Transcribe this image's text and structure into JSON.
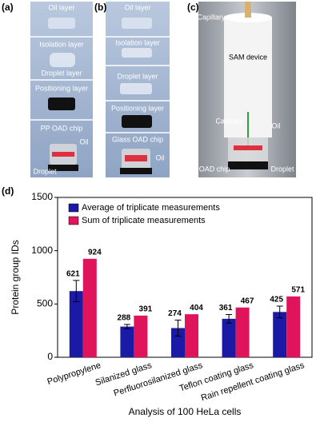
{
  "panels": [
    {
      "label": "(a)",
      "texts": [
        "Oil layer",
        "Isolation layer",
        "Droplet layer",
        "Positioning layer",
        "PP OAD chip",
        "Oil",
        "Droplet"
      ]
    },
    {
      "label": "(b)",
      "texts": [
        "Oil layer",
        "Isolation layer",
        "Droplet layer",
        "Positioning layer",
        "Glass OAD chip",
        "Oil"
      ]
    },
    {
      "label": "(c)",
      "texts": [
        "Capillary",
        "SAM device",
        "Capillary",
        "Oil",
        "OAD chip",
        "Droplet"
      ]
    }
  ],
  "chart_data": {
    "type": "bar",
    "panel_label": "(d)",
    "ylabel": "Protein group IDs",
    "xlabel": "Analysis of 100 HeLa cells",
    "categories": [
      "Polypropylene",
      "Silanized glass",
      "Perfluorosilanized glass",
      "Teflon coating glass",
      "Rain repellent coating glass"
    ],
    "series": [
      {
        "name": "Average of triplicate measurements",
        "color": "#1a1aa6",
        "values": [
          621,
          288,
          274,
          361,
          425
        ],
        "errors": [
          100,
          20,
          75,
          40,
          55
        ]
      },
      {
        "name": "Sum of triplicate measurements",
        "color": "#e0145a",
        "values": [
          924,
          391,
          404,
          467,
          571
        ]
      }
    ],
    "ylim": [
      0,
      1500
    ],
    "yticks": [
      0,
      500,
      1000,
      1500
    ],
    "legend": "upper left"
  }
}
